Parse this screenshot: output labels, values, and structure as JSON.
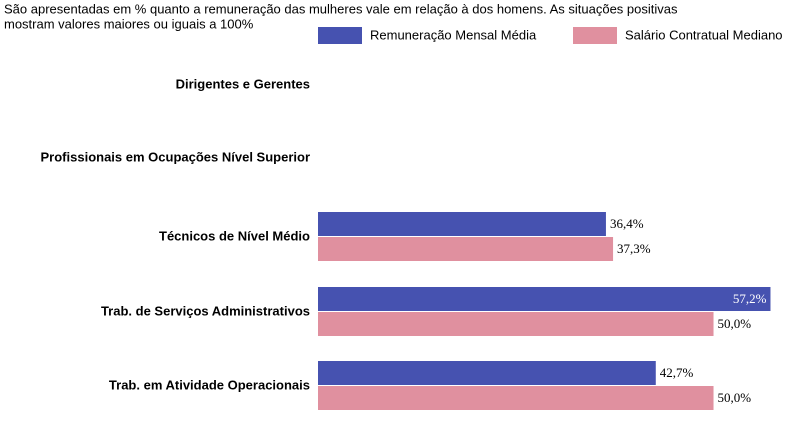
{
  "chart_data": {
    "type": "bar",
    "orientation": "horizontal",
    "description": [
      "São apresentadas em % quanto a remuneração das mulheres vale em relação à dos homens. As situações positivas",
      "mostram valores maiores ou iguais a 100%"
    ],
    "categories": [
      "Dirigentes e Gerentes",
      "Profissionais em Ocupações Nível Superior",
      "Técnicos de Nível Médio",
      "Trab. de Serviços Administrativos",
      "Trab. em Atividade Operacionais"
    ],
    "series": [
      {
        "name": "Remuneração Mensal Média",
        "color": "#4652b0",
        "values": [
          null,
          null,
          36.4,
          57.2,
          42.7
        ],
        "value_labels": [
          null,
          null,
          "36,4%",
          "57,2%",
          "42,7%"
        ]
      },
      {
        "name": "Salário Contratual Mediano",
        "color": "#e0909f",
        "values": [
          null,
          null,
          37.3,
          50.0,
          50.0
        ],
        "value_labels": [
          null,
          null,
          "37,3%",
          "50,0%",
          "50,0%"
        ]
      }
    ],
    "xlim": [
      0,
      60.3
    ]
  }
}
